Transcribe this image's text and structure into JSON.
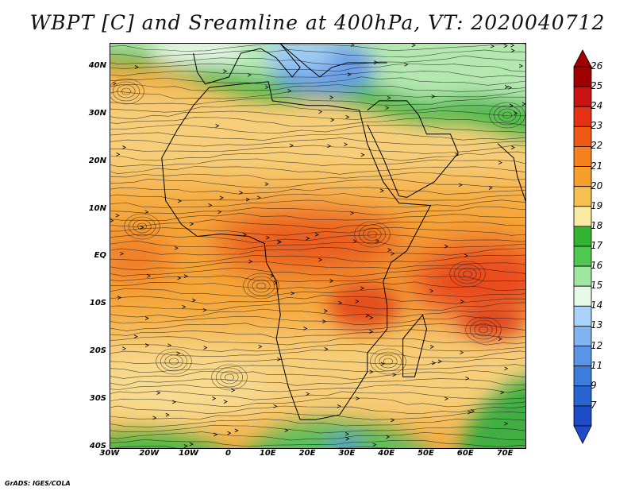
{
  "title": "WBPT [C] and Sreamline at 400hPa, VT: 2020040712",
  "credit": "GrADS: IGES/COLA",
  "map": {
    "lon_range": [
      -30,
      75
    ],
    "lat_range": [
      -40,
      45
    ],
    "lat_ticks": [
      {
        "value": 40,
        "label": "40N"
      },
      {
        "value": 30,
        "label": "30N"
      },
      {
        "value": 20,
        "label": "20N"
      },
      {
        "value": 10,
        "label": "10N"
      },
      {
        "value": 0,
        "label": "EQ"
      },
      {
        "value": -10,
        "label": "10S"
      },
      {
        "value": -20,
        "label": "20S"
      },
      {
        "value": -30,
        "label": "30S"
      },
      {
        "value": -40,
        "label": "40S"
      }
    ],
    "lon_ticks": [
      {
        "value": -30,
        "label": "30W"
      },
      {
        "value": -20,
        "label": "20W"
      },
      {
        "value": -10,
        "label": "10W"
      },
      {
        "value": 0,
        "label": "0"
      },
      {
        "value": 10,
        "label": "10E"
      },
      {
        "value": 20,
        "label": "20E"
      },
      {
        "value": 30,
        "label": "30E"
      },
      {
        "value": 40,
        "label": "40E"
      },
      {
        "value": 50,
        "label": "50E"
      },
      {
        "value": 60,
        "label": "60E"
      },
      {
        "value": 70,
        "label": "70E"
      }
    ]
  },
  "colorbar": {
    "levels": [
      "26",
      "25",
      "24",
      "23",
      "22",
      "21",
      "20",
      "19",
      "18",
      "17",
      "16",
      "15",
      "14",
      "13",
      "12",
      "11",
      "9",
      "7"
    ],
    "colors": [
      "#a00000",
      "#c81414",
      "#e63214",
      "#f05a14",
      "#f5821e",
      "#f5a02d",
      "#f7bf50",
      "#faeba0",
      "#32b432",
      "#50c850",
      "#a0e6a0",
      "#e6fae6",
      "#aad2fa",
      "#82b4f0",
      "#5a96e6",
      "#3c7ddc",
      "#2864d2",
      "#1e4bc8"
    ],
    "top_arrow_color": "#a00000",
    "bottom_arrow_color": "#1e4bc8"
  }
}
